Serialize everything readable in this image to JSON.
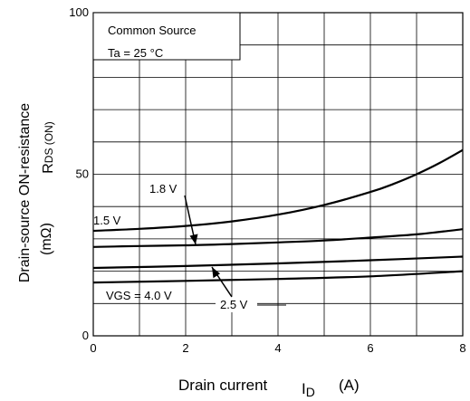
{
  "chart_data": {
    "type": "line",
    "xlabel": "Drain current",
    "xlabel_symbol": "I",
    "xlabel_subscript": "D",
    "xlabel_unit": "(A)",
    "ylabel": "Drain-source ON-resistance",
    "ylabel_symbol": "R",
    "ylabel_subscript": "DS (ON)",
    "ylabel_unit": "(mΩ)",
    "xlim": [
      0,
      8
    ],
    "ylim": [
      0,
      100
    ],
    "x_ticks": [
      "0",
      "2",
      "4",
      "6",
      "8"
    ],
    "y_ticks": [
      "0",
      "50",
      "100"
    ],
    "grid": true,
    "annotation_box": {
      "line1": "Common Source",
      "line2": "Ta = 25 °C"
    },
    "series": [
      {
        "name": "1.5 V",
        "x": [
          0,
          1,
          2,
          3,
          4,
          5,
          6,
          6.5,
          7,
          7.5,
          8
        ],
        "y": [
          32.5,
          33.1,
          34.0,
          35.4,
          37.5,
          40.5,
          44.5,
          47.0,
          50.0,
          53.5,
          57.5
        ]
      },
      {
        "name": "1.8 V",
        "x": [
          0,
          1,
          2,
          3,
          4,
          5,
          6,
          7,
          8
        ],
        "y": [
          27.5,
          27.8,
          28.0,
          28.4,
          28.9,
          29.5,
          30.4,
          31.4,
          33.0
        ]
      },
      {
        "name": "2.5 V",
        "x": [
          0,
          2,
          4,
          6,
          8
        ],
        "y": [
          21.0,
          21.6,
          22.4,
          23.4,
          24.5
        ]
      },
      {
        "name": "VGS = 4.0 V",
        "x": [
          0,
          2,
          4,
          6,
          8
        ],
        "y": [
          16.5,
          17.0,
          17.6,
          18.4,
          20.0
        ]
      }
    ]
  }
}
